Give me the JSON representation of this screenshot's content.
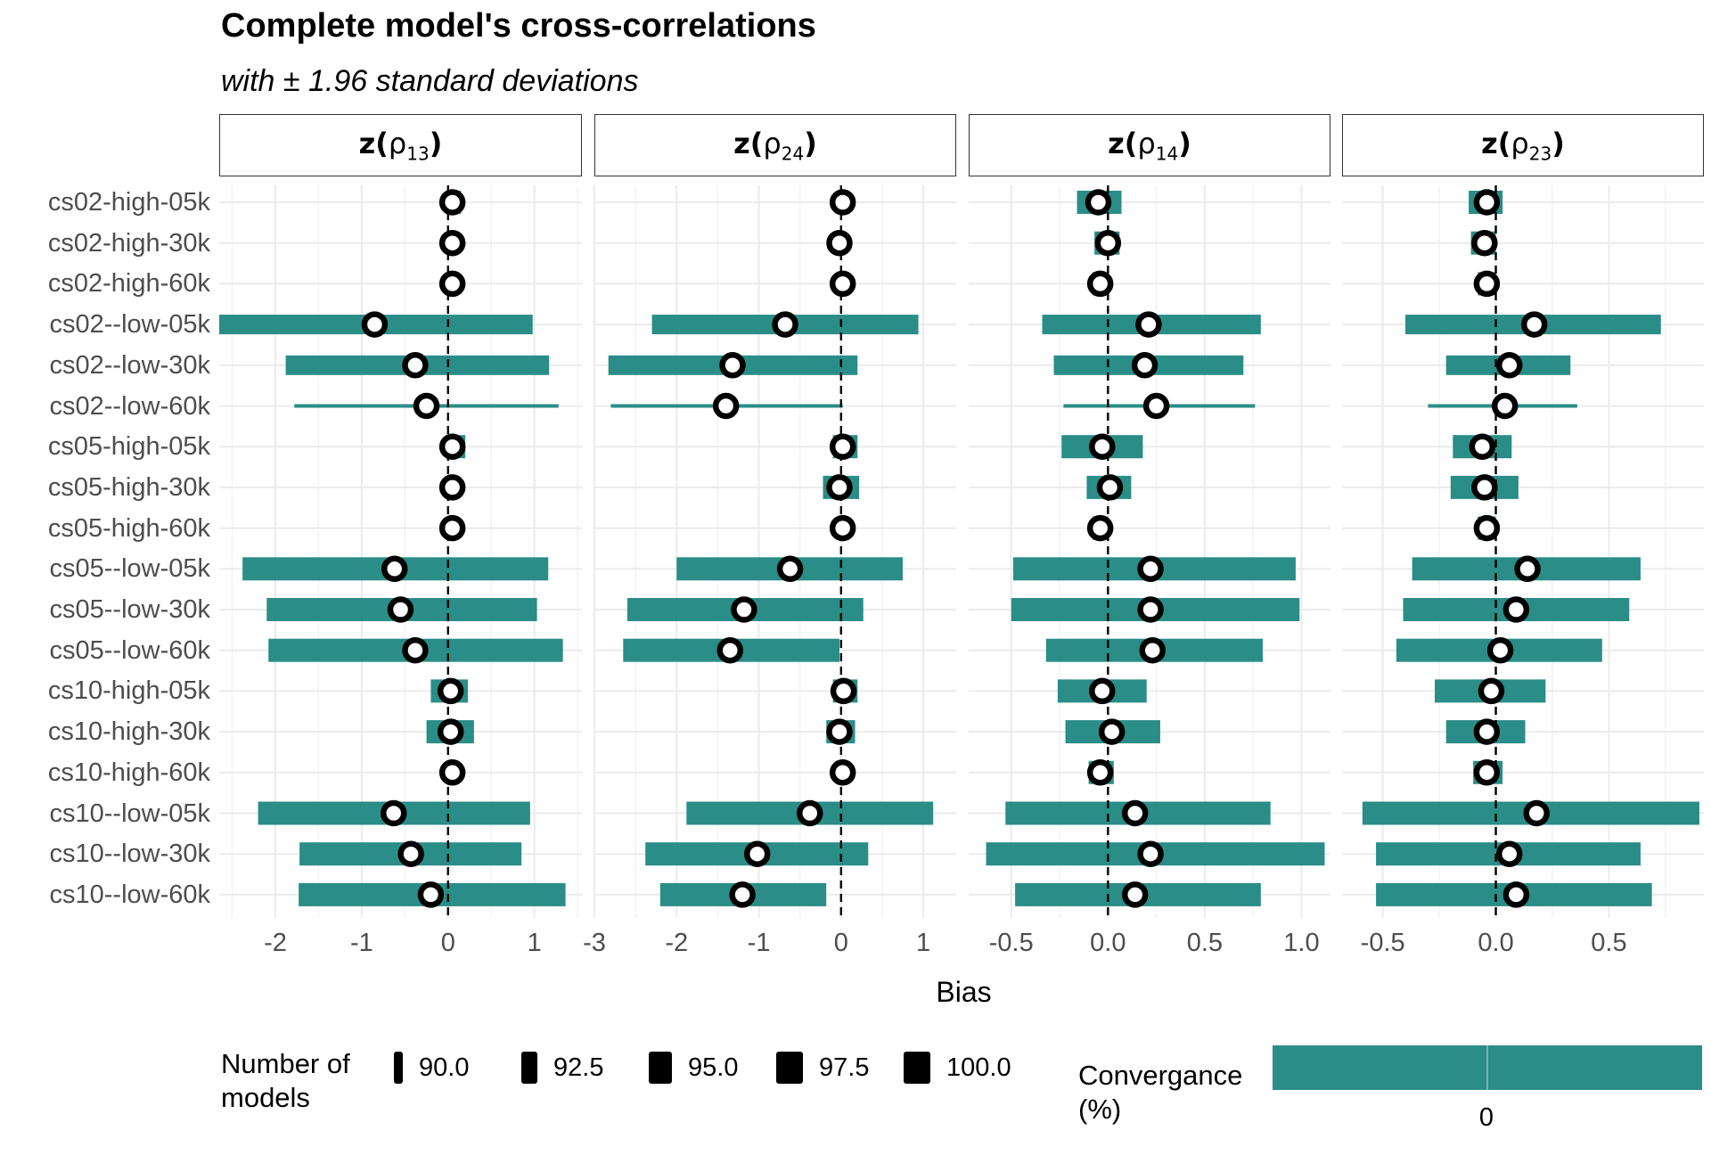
{
  "title": "Complete model's cross-correlations",
  "subtitle": "with ± 1.96 standard deviations",
  "x_axis_title": "Bias",
  "legend": {
    "size_title_line1": "Number of",
    "size_title_line2": "models",
    "size_items": [
      "90.0",
      "92.5",
      "95.0",
      "97.5",
      "100.0"
    ],
    "color_title_line1": "Convergance",
    "color_title_line2": "(%)",
    "color_tick": "0",
    "color_value": "#2a8d87"
  },
  "colors": {
    "bar": "#2a8d87",
    "point_fill": "#ffffff",
    "point_stroke": "#000000",
    "grid": "#ebebeb"
  },
  "chart_data": {
    "type": "errorbar-point",
    "rows": [
      "cs02-high-05k",
      "cs02-high-30k",
      "cs02-high-60k",
      "cs02--low-05k",
      "cs02--low-30k",
      "cs02--low-60k",
      "cs05-high-05k",
      "cs05-high-30k",
      "cs05-high-60k",
      "cs05--low-05k",
      "cs05--low-30k",
      "cs05--low-60k",
      "cs10-high-05k",
      "cs10-high-30k",
      "cs10-high-60k",
      "cs10--low-05k",
      "cs10--low-30k",
      "cs10--low-60k"
    ],
    "panels": [
      {
        "label": "z(ρ",
        "sub": "13",
        "xlim": [
          -2.65,
          1.55
        ],
        "ticks": [
          -2,
          -1,
          0,
          1
        ],
        "tick_labels": [
          "-2",
          "-1",
          "0",
          "1"
        ],
        "center": [
          0.05,
          0.05,
          0.05,
          -0.85,
          -0.38,
          -0.25,
          0.05,
          0.05,
          0.05,
          -0.62,
          -0.55,
          -0.38,
          0.03,
          0.03,
          0.05,
          -0.63,
          -0.43,
          -0.2
        ],
        "lower": [
          0.0,
          0.0,
          0.02,
          -2.65,
          -1.88,
          -1.78,
          0.0,
          0.0,
          0.02,
          -2.38,
          -2.1,
          -2.08,
          -0.2,
          -0.25,
          0.02,
          -2.2,
          -1.72,
          -1.73
        ],
        "upper": [
          0.15,
          0.1,
          0.08,
          0.98,
          1.17,
          1.28,
          0.2,
          0.12,
          0.08,
          1.16,
          1.03,
          1.33,
          0.23,
          0.3,
          0.08,
          0.95,
          0.85,
          1.36
        ],
        "size": [
          100,
          100,
          100,
          97.5,
          97.5,
          90,
          100,
          100,
          100,
          100,
          100,
          100,
          100,
          100,
          100,
          100,
          100,
          100
        ]
      },
      {
        "label": "z(ρ",
        "sub": "24",
        "xlim": [
          -3,
          1.4
        ],
        "ticks": [
          -3,
          -2,
          -1,
          0,
          1
        ],
        "tick_labels": [
          "-3",
          "-2",
          "-1",
          "0",
          "1"
        ],
        "center": [
          0.02,
          -0.02,
          0.02,
          -0.68,
          -1.32,
          -1.4,
          0.02,
          -0.02,
          0.02,
          -0.62,
          -1.18,
          -1.35,
          0.03,
          -0.02,
          0.02,
          -0.38,
          -1.02,
          -1.2
        ],
        "lower": [
          0.0,
          -0.02,
          0.0,
          -2.3,
          -2.83,
          -2.8,
          -0.1,
          -0.22,
          0.0,
          -2.0,
          -2.6,
          -2.65,
          -0.1,
          -0.18,
          0.0,
          -1.88,
          -2.38,
          -2.2
        ],
        "upper": [
          0.05,
          0.02,
          0.03,
          0.94,
          0.2,
          0.02,
          0.2,
          0.22,
          0.02,
          0.75,
          0.27,
          -0.02,
          0.2,
          0.17,
          0.02,
          1.12,
          0.33,
          -0.18
        ],
        "size": [
          100,
          100,
          100,
          97.5,
          97.5,
          90,
          100,
          100,
          100,
          100,
          100,
          100,
          100,
          100,
          100,
          100,
          100,
          100
        ]
      },
      {
        "label": "z(ρ",
        "sub": "14",
        "xlim": [
          -0.72,
          1.15
        ],
        "ticks": [
          -0.5,
          0.0,
          0.5,
          1.0
        ],
        "tick_labels": [
          "-0.5",
          "0.0",
          "0.5",
          "1.0"
        ],
        "center": [
          -0.05,
          0.0,
          -0.04,
          0.21,
          0.19,
          0.25,
          -0.03,
          0.01,
          -0.04,
          0.22,
          0.22,
          0.23,
          -0.03,
          0.02,
          -0.04,
          0.14,
          0.22,
          0.14
        ],
        "lower": [
          -0.16,
          -0.07,
          -0.08,
          -0.34,
          -0.28,
          -0.23,
          -0.24,
          -0.11,
          -0.08,
          -0.49,
          -0.5,
          -0.32,
          -0.26,
          -0.22,
          -0.1,
          -0.53,
          -0.63,
          -0.48
        ],
        "upper": [
          0.07,
          0.06,
          0.0,
          0.79,
          0.7,
          0.76,
          0.18,
          0.12,
          0.0,
          0.97,
          0.99,
          0.8,
          0.2,
          0.27,
          0.03,
          0.84,
          1.12,
          0.79
        ],
        "size": [
          100,
          100,
          100,
          97.5,
          97.5,
          90,
          100,
          100,
          100,
          100,
          100,
          100,
          100,
          100,
          100,
          100,
          100,
          100
        ]
      },
      {
        "label": "z(ρ",
        "sub": "23",
        "xlim": [
          -0.68,
          0.92
        ],
        "ticks": [
          -0.5,
          0.0,
          0.5
        ],
        "tick_labels": [
          "-0.5",
          "0.0",
          "0.5"
        ],
        "center": [
          -0.04,
          -0.05,
          -0.04,
          0.17,
          0.06,
          0.04,
          -0.06,
          -0.05,
          -0.04,
          0.14,
          0.09,
          0.02,
          -0.02,
          -0.04,
          -0.04,
          0.18,
          0.06,
          0.09
        ],
        "lower": [
          -0.12,
          -0.11,
          -0.08,
          -0.4,
          -0.22,
          -0.3,
          -0.19,
          -0.2,
          -0.08,
          -0.37,
          -0.41,
          -0.44,
          -0.27,
          -0.22,
          -0.1,
          -0.59,
          -0.53,
          -0.53
        ],
        "upper": [
          0.03,
          0.0,
          0.0,
          0.73,
          0.33,
          0.36,
          0.07,
          0.1,
          0.0,
          0.64,
          0.59,
          0.47,
          0.22,
          0.13,
          0.03,
          0.9,
          0.64,
          0.69
        ],
        "size": [
          100,
          100,
          100,
          97.5,
          97.5,
          90,
          100,
          100,
          100,
          100,
          100,
          100,
          100,
          100,
          100,
          100,
          100,
          100
        ]
      }
    ]
  }
}
